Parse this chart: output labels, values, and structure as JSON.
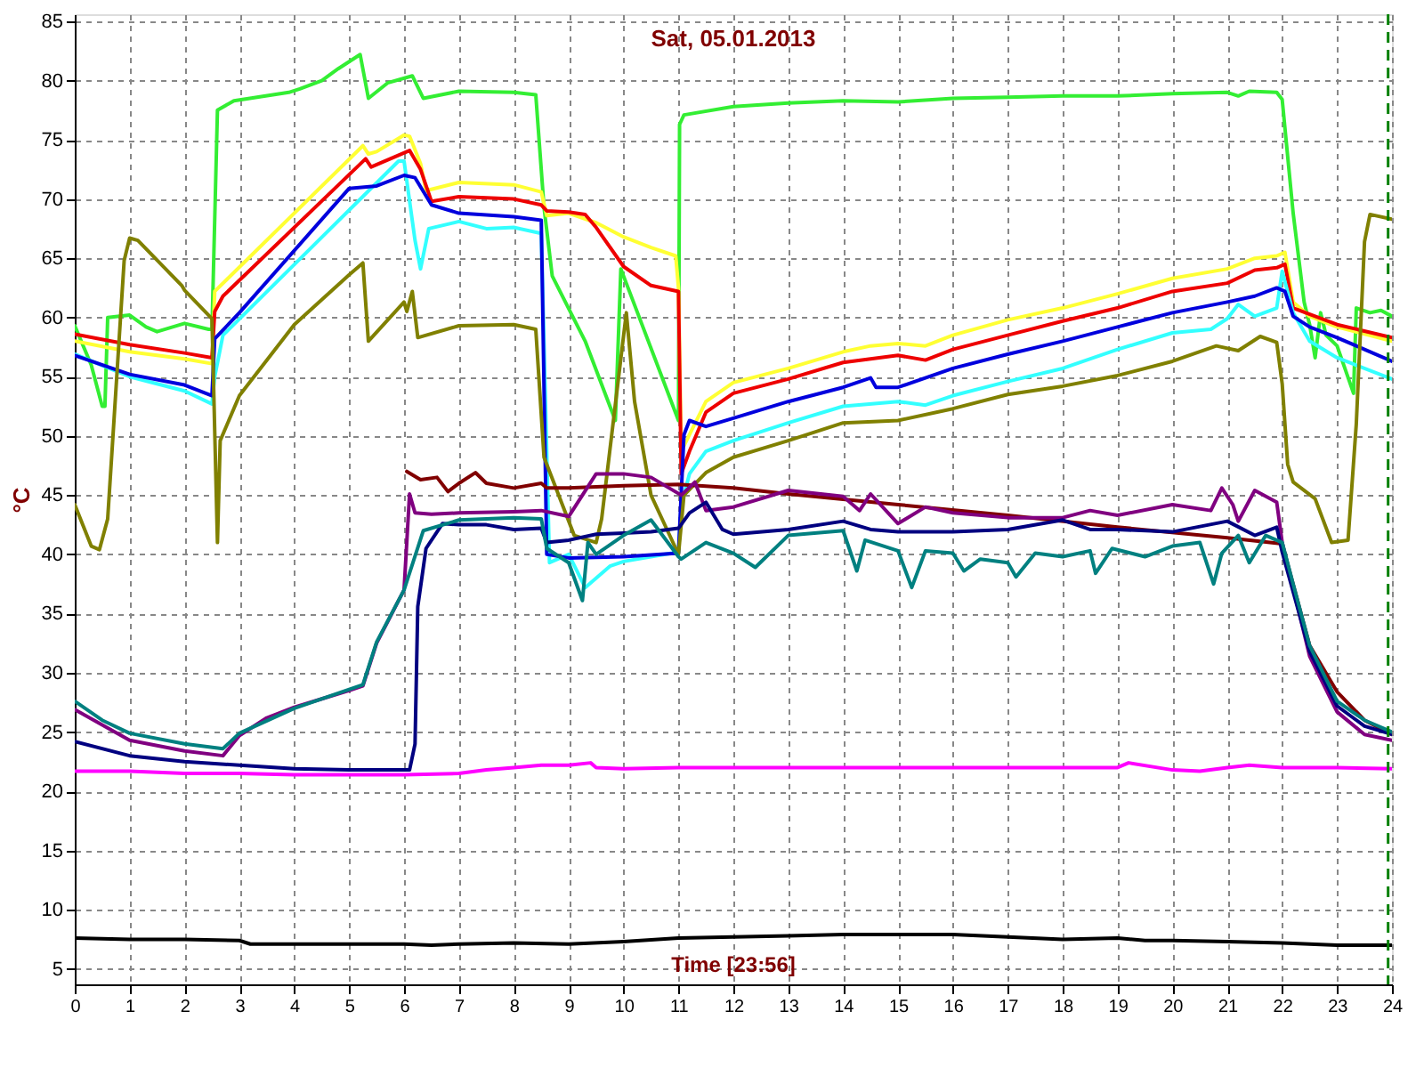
{
  "chart_data": {
    "type": "line",
    "title": "Sat, 05.01.2013",
    "ylabel": "°C",
    "annotations": [
      "Time [23:56]"
    ],
    "xlim": [
      0,
      24
    ],
    "xticks": [
      0,
      1,
      2,
      3,
      4,
      5,
      6,
      7,
      8,
      9,
      10,
      11,
      12,
      13,
      14,
      15,
      16,
      17,
      18,
      19,
      20,
      21,
      22,
      23,
      24
    ],
    "ylim": [
      3.7,
      85.6
    ],
    "yticks": [
      5,
      10,
      15,
      20,
      25,
      30,
      35,
      40,
      45,
      50,
      55,
      60,
      65,
      70,
      75,
      80,
      85
    ],
    "grid": true,
    "marker": "none",
    "line_style": "solid",
    "ref_lines": [
      {
        "axis": "x",
        "value": 23.93,
        "color": "#008000",
        "line_style": "dashed"
      }
    ],
    "series": [
      {
        "color": "#33ee33",
        "x": [
          0,
          0.3,
          0.5,
          0.55,
          0.6,
          1.0,
          1.3,
          1.5,
          2.0,
          2.44,
          2.5,
          2.6,
          2.9,
          3.9,
          4.1,
          4.5,
          4.8,
          5.2,
          5.35,
          5.7,
          6.15,
          6.35,
          7.0,
          8.0,
          8.4,
          8.55,
          8.7,
          9.3,
          9.85,
          9.95,
          11.0,
          11.02,
          11.1,
          12,
          13,
          14,
          15,
          16,
          17,
          18,
          19,
          20,
          21,
          21.2,
          21.4,
          21.9,
          22.0,
          22.2,
          22.4,
          22.5,
          22.6,
          22.7,
          22.8,
          23.0,
          23.3,
          23.35,
          23.6,
          23.8,
          24
        ],
        "values": [
          59.3,
          56,
          52.5,
          52.5,
          60,
          60.2,
          59.2,
          58.8,
          59.5,
          59,
          59,
          77.5,
          78.3,
          79,
          79.3,
          80,
          81,
          82.2,
          78.5,
          79.8,
          80.4,
          78.5,
          79.1,
          79,
          78.8,
          69.3,
          63.5,
          58,
          51.3,
          64.1,
          51.3,
          76.3,
          77.1,
          77.8,
          78.1,
          78.3,
          78.2,
          78.5,
          78.6,
          78.7,
          78.7,
          78.9,
          79,
          78.7,
          79.1,
          79,
          78.4,
          68.8,
          61.3,
          59.4,
          56.6,
          60.4,
          58.5,
          57.6,
          53.6,
          60.8,
          60.4,
          60.6,
          60.1
        ]
      },
      {
        "color": "#ffff33",
        "x": [
          0,
          1,
          2,
          2.5,
          2.55,
          5.25,
          5.35,
          5.5,
          6.0,
          6.1,
          6.3,
          6.4,
          7,
          8,
          8.5,
          8.6,
          9,
          9.5,
          10,
          10.5,
          10.95,
          11.0,
          11.05,
          11.2,
          11.5,
          12,
          13,
          14,
          14.5,
          15,
          15.5,
          16,
          17,
          18,
          19,
          20,
          21,
          21.5,
          21.9,
          22.05,
          22.2,
          22.5,
          23,
          24
        ],
        "values": [
          58,
          57.1,
          56.5,
          56.1,
          62.2,
          74.5,
          73.8,
          74,
          75.4,
          75.3,
          73,
          70.7,
          71.4,
          71.2,
          70.6,
          68.6,
          68.8,
          68,
          66.8,
          65.9,
          65.2,
          62.5,
          48.7,
          50.1,
          52.9,
          54.5,
          55.7,
          57.1,
          57.6,
          57.8,
          57.6,
          58.5,
          59.8,
          60.8,
          62,
          63.3,
          64.1,
          65,
          65.2,
          65.5,
          61.3,
          60.1,
          59.2,
          58
        ]
      },
      {
        "color": "#ee0000",
        "x": [
          0,
          1,
          2,
          2.5,
          2.55,
          2.7,
          5.3,
          5.4,
          6.1,
          6.3,
          6.5,
          7,
          8,
          8.5,
          8.6,
          9,
          9.3,
          9.5,
          10,
          10.5,
          11.0,
          11.05,
          11.2,
          11.5,
          12,
          13,
          14,
          15,
          15.5,
          16,
          17,
          18,
          19,
          20,
          21,
          21.5,
          21.9,
          22.05,
          22.2,
          23,
          24
        ],
        "values": [
          58.6,
          57.7,
          57,
          56.6,
          60.5,
          61.8,
          73.4,
          72.7,
          74.1,
          72.5,
          69.8,
          70.2,
          70,
          69.5,
          69,
          68.9,
          68.7,
          67.6,
          64.3,
          62.7,
          62.2,
          46.8,
          48.7,
          52,
          53.6,
          54.8,
          56.2,
          56.8,
          56.4,
          57.3,
          58.5,
          59.7,
          60.8,
          62.2,
          62.9,
          64,
          64.2,
          64.5,
          60.8,
          59.4,
          58.3
        ]
      },
      {
        "color": "#33ffff",
        "x": [
          0,
          1,
          2,
          2.5,
          2.55,
          2.7,
          5.9,
          6.0,
          6.2,
          6.3,
          6.45,
          7,
          7.5,
          8,
          8.5,
          8.65,
          9.0,
          9.3,
          9.75,
          10,
          10.5,
          11,
          11.05,
          11.2,
          11.5,
          12,
          13,
          14,
          15,
          15.5,
          16,
          17,
          18,
          19,
          20,
          20.7,
          21,
          21.2,
          21.5,
          21.9,
          22.0,
          22.2,
          22.5,
          23,
          24
        ],
        "values": [
          56.9,
          55,
          53.8,
          52.7,
          55,
          58.5,
          73.2,
          73.2,
          66.5,
          64.1,
          67.5,
          68.1,
          67.5,
          67.6,
          67.1,
          39.3,
          40,
          37.2,
          39,
          39.4,
          39.8,
          40.2,
          44.1,
          46.8,
          48.7,
          49.6,
          51.1,
          52.5,
          52.9,
          52.6,
          53.4,
          54.6,
          55.7,
          57.3,
          58.7,
          59,
          59.9,
          61.1,
          60.1,
          60.8,
          63.9,
          60.4,
          58,
          56.6,
          54.8
        ]
      },
      {
        "color": "#0000dd",
        "x": [
          0,
          1,
          2,
          2.5,
          2.55,
          3,
          5,
          5.5,
          6.0,
          6.2,
          6.5,
          7,
          8,
          8.5,
          8.6,
          9,
          10,
          11,
          11.1,
          11.2,
          11.5,
          12,
          13,
          14,
          14.5,
          14.6,
          15,
          16,
          17,
          18,
          19,
          20,
          21,
          21.5,
          21.9,
          22.05,
          22.2,
          22.5,
          23,
          23.5,
          24
        ],
        "values": [
          56.8,
          55.2,
          54.3,
          53.4,
          58.2,
          60.4,
          70.9,
          71.1,
          72,
          71.8,
          69.5,
          68.8,
          68.5,
          68.2,
          40,
          39.7,
          39.8,
          40.1,
          50.1,
          51.3,
          50.8,
          51.5,
          52.9,
          54.1,
          54.9,
          54.1,
          54.1,
          55.7,
          56.9,
          58,
          59.2,
          60.4,
          61.3,
          61.8,
          62.5,
          62.2,
          60.1,
          59.2,
          58.3,
          57.3,
          56.3
        ]
      },
      {
        "color": "#808000",
        "x": [
          0,
          0.3,
          0.45,
          0.6,
          0.9,
          1.0,
          1.15,
          1.95,
          2.0,
          2.5,
          2.6,
          2.65,
          3,
          4,
          5,
          5.25,
          5.35,
          6.0,
          6.05,
          6.15,
          6.25,
          7,
          8,
          8.4,
          8.55,
          9.1,
          9.5,
          9.6,
          10.05,
          10.2,
          10.5,
          10.8,
          11.0,
          11.1,
          11.5,
          12,
          13,
          14,
          15,
          16,
          17,
          18,
          19,
          20,
          20.8,
          21.2,
          21.6,
          21.9,
          22.0,
          22.1,
          22.2,
          22.6,
          22.9,
          23.2,
          23.35,
          23.5,
          23.6,
          24
        ],
        "values": [
          44.2,
          40.7,
          40.4,
          43,
          64.8,
          66.7,
          66.5,
          62.7,
          62.3,
          59.9,
          41,
          49.6,
          53.4,
          59.4,
          63.6,
          64.6,
          58,
          61.3,
          60.5,
          62.2,
          58.3,
          59.3,
          59.4,
          59,
          48.2,
          41.6,
          41,
          43,
          60.4,
          52.9,
          45,
          42,
          40,
          45,
          46.9,
          48.2,
          49.6,
          51.1,
          51.3,
          52.3,
          53.5,
          54.2,
          55.1,
          56.3,
          57.6,
          57.2,
          58.4,
          57.9,
          54.4,
          47.6,
          46.1,
          44.7,
          41,
          41.2,
          51,
          66.4,
          68.7,
          68.3
        ]
      },
      {
        "color": "#800000",
        "x": [
          6.05,
          6.3,
          6.6,
          6.8,
          7.0,
          7.3,
          7.5,
          8,
          8.5,
          8.6,
          9,
          10,
          11,
          12,
          13,
          15,
          17,
          19,
          21,
          22,
          22.5,
          23,
          23.5,
          24
        ],
        "values": [
          47,
          46.3,
          46.5,
          45.3,
          46,
          46.9,
          46,
          45.6,
          46,
          45.6,
          45.6,
          45.8,
          45.9,
          45.6,
          45.1,
          44.2,
          43.3,
          42.3,
          41.4,
          40.9,
          32.3,
          28.4,
          26,
          24.8
        ]
      },
      {
        "color": "#800080",
        "x": [
          0,
          0.5,
          1,
          2,
          2.7,
          3,
          3.5,
          4,
          4.5,
          5,
          5.25,
          5.5,
          6,
          6.1,
          6.2,
          6.5,
          7,
          8,
          8.5,
          9.0,
          9.5,
          10,
          10.5,
          11.05,
          11.3,
          11.5,
          12,
          13,
          14,
          14.3,
          14.5,
          15,
          15.5,
          16,
          17,
          18,
          18.5,
          19,
          20,
          20.7,
          20.9,
          21.1,
          21.2,
          21.5,
          21.9,
          22.0,
          22.5,
          23,
          23.5,
          24
        ],
        "values": [
          26.9,
          25.6,
          24.3,
          23.4,
          23,
          24.7,
          26.2,
          27.1,
          27.8,
          28.5,
          28.9,
          32.5,
          37,
          45.1,
          43.5,
          43.4,
          43.5,
          43.6,
          43.7,
          43.2,
          46.8,
          46.8,
          46.5,
          45,
          46.1,
          43.7,
          44,
          45.4,
          44.9,
          43.7,
          45.1,
          42.6,
          44,
          43.5,
          43.1,
          43.1,
          43.7,
          43.3,
          44.2,
          43.7,
          45.6,
          44.2,
          42.8,
          45.4,
          44.4,
          41,
          31.4,
          26.7,
          24.8,
          24.3
        ]
      },
      {
        "color": "#000080",
        "x": [
          0,
          1,
          2,
          3,
          4,
          5,
          6.1,
          6.2,
          6.25,
          6.4,
          6.7,
          7,
          7.5,
          8,
          8.5,
          8.6,
          9,
          9.5,
          10,
          10.5,
          11,
          11.2,
          11.5,
          11.8,
          12,
          13,
          14,
          14.5,
          15,
          16,
          17,
          18,
          18.5,
          19,
          20,
          21,
          21.5,
          21.9,
          22.0,
          22.5,
          23,
          23.5,
          24
        ],
        "values": [
          24.2,
          23,
          22.5,
          22.2,
          21.9,
          21.8,
          21.8,
          24,
          35.6,
          40.5,
          42.6,
          42.5,
          42.5,
          42.1,
          42.2,
          41,
          41.2,
          41.7,
          41.8,
          41.9,
          42.2,
          43.5,
          44.4,
          42.1,
          41.7,
          42.1,
          42.8,
          42.1,
          41.9,
          41.9,
          42.1,
          42.9,
          42.1,
          42.1,
          41.9,
          42.8,
          41.6,
          42.3,
          40.2,
          31.8,
          27.2,
          25.5,
          24.8
        ]
      },
      {
        "color": "#008080",
        "x": [
          0,
          0.5,
          1,
          2,
          2.7,
          3,
          4,
          5,
          5.25,
          5.5,
          6,
          6.35,
          7,
          8,
          8.5,
          8.6,
          9.0,
          9.25,
          9.35,
          9.5,
          10,
          10.5,
          11,
          11.05,
          11.5,
          12,
          12.4,
          13,
          14,
          14.25,
          14.4,
          15,
          15.25,
          15.5,
          16,
          16.2,
          16.5,
          17,
          17.15,
          17.5,
          18,
          18.5,
          18.6,
          18.9,
          19.5,
          20,
          20.5,
          20.75,
          20.9,
          21.2,
          21.4,
          21.7,
          22.0,
          22.2,
          22.5,
          23,
          23.5,
          24
        ],
        "values": [
          27.6,
          26,
          24.9,
          24,
          23.6,
          24.9,
          27,
          28.6,
          29,
          32.6,
          37,
          42,
          42.9,
          43.1,
          43,
          40.5,
          39.3,
          36.1,
          41,
          40,
          41.6,
          42.9,
          39.8,
          39.6,
          41,
          40.1,
          38.9,
          41.6,
          42,
          38.6,
          41.2,
          40.3,
          37.2,
          40.3,
          40.1,
          38.6,
          39.6,
          39.3,
          38.1,
          40.1,
          39.8,
          40.3,
          38.4,
          40.5,
          39.8,
          40.7,
          41,
          37.5,
          40.1,
          41.6,
          39.3,
          41.6,
          41,
          37.5,
          32.3,
          27.6,
          26,
          25
        ]
      },
      {
        "color": "#ff00ff",
        "x": [
          0,
          1,
          2,
          3,
          4,
          5,
          6,
          7,
          7.5,
          8,
          8.5,
          9,
          9.4,
          9.5,
          10,
          11,
          12,
          19,
          19.2,
          20,
          20.5,
          21,
          21.4,
          22,
          23,
          24
        ],
        "values": [
          21.7,
          21.7,
          21.5,
          21.5,
          21.4,
          21.4,
          21.4,
          21.5,
          21.8,
          22,
          22.2,
          22.2,
          22.4,
          22,
          21.9,
          22,
          22,
          22,
          22.4,
          21.8,
          21.7,
          22,
          22.2,
          22,
          22,
          21.9
        ]
      },
      {
        "color": "#000000",
        "x": [
          0,
          1,
          2,
          3,
          3.2,
          4,
          5,
          6,
          6.5,
          7,
          8,
          9,
          10,
          11,
          12,
          13,
          14,
          15,
          16,
          17,
          18,
          19,
          19.5,
          20,
          21,
          22,
          23,
          24
        ],
        "values": [
          7.6,
          7.5,
          7.5,
          7.4,
          7.1,
          7.1,
          7.1,
          7.1,
          7,
          7.1,
          7.2,
          7.1,
          7.3,
          7.6,
          7.7,
          7.8,
          7.9,
          7.9,
          7.9,
          7.7,
          7.5,
          7.6,
          7.4,
          7.4,
          7.3,
          7.2,
          7,
          7
        ]
      }
    ]
  }
}
